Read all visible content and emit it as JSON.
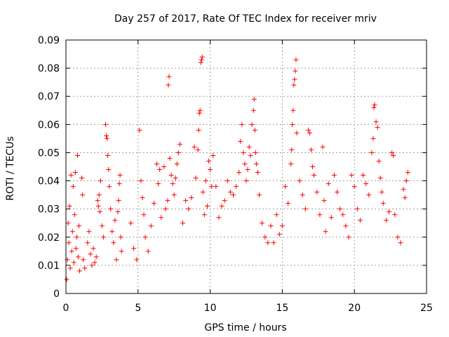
{
  "chart_data": {
    "type": "scatter",
    "title": "Day 257 of 2017, Rate Of TEC Index for receiver mriv",
    "xlabel": "GPS time / hours",
    "ylabel": "ROTI / TECUs",
    "xlim": [
      0,
      25
    ],
    "ylim": [
      0,
      0.09
    ],
    "xticks": [
      0,
      5,
      10,
      15,
      20,
      25
    ],
    "yticks": [
      0,
      0.01,
      0.02,
      0.03,
      0.04,
      0.05,
      0.06,
      0.07,
      0.08,
      0.09
    ],
    "ytick_labels": [
      "0",
      "0.01",
      "0.02",
      "0.03",
      "0.04",
      "0.05",
      "0.06",
      "0.07",
      "0.08",
      "0.09"
    ],
    "xtick_labels": [
      "0",
      "5",
      "10",
      "15",
      "20",
      "25"
    ],
    "grid": true,
    "marker": "+",
    "color": "#ff0000",
    "series": [
      {
        "name": "ROTI",
        "points": [
          [
            0.05,
            0.005
          ],
          [
            0.1,
            0.012
          ],
          [
            0.15,
            0.025
          ],
          [
            0.2,
            0.018
          ],
          [
            0.25,
            0.031
          ],
          [
            0.3,
            0.009
          ],
          [
            0.35,
            0.042
          ],
          [
            0.4,
            0.015
          ],
          [
            0.45,
            0.022
          ],
          [
            0.5,
            0.038
          ],
          [
            0.55,
            0.011
          ],
          [
            0.6,
            0.028
          ],
          [
            0.65,
            0.043
          ],
          [
            0.7,
            0.016
          ],
          [
            0.75,
            0.02
          ],
          [
            0.8,
            0.049
          ],
          [
            0.85,
            0.013
          ],
          [
            0.9,
            0.024
          ],
          [
            0.95,
            0.008
          ],
          [
            1.1,
            0.041
          ],
          [
            1.15,
            0.035
          ],
          [
            1.2,
            0.012
          ],
          [
            1.3,
            0.009
          ],
          [
            1.5,
            0.018
          ],
          [
            1.6,
            0.022
          ],
          [
            1.7,
            0.014
          ],
          [
            1.8,
            0.01
          ],
          [
            1.9,
            0.016
          ],
          [
            2.0,
            0.011
          ],
          [
            2.1,
            0.013
          ],
          [
            2.2,
            0.033
          ],
          [
            2.25,
            0.031
          ],
          [
            2.3,
            0.035
          ],
          [
            2.35,
            0.029
          ],
          [
            2.4,
            0.04
          ],
          [
            2.5,
            0.024
          ],
          [
            2.6,
            0.02
          ],
          [
            2.75,
            0.06
          ],
          [
            2.8,
            0.056
          ],
          [
            2.85,
            0.055
          ],
          [
            2.9,
            0.049
          ],
          [
            2.95,
            0.044
          ],
          [
            3.0,
            0.038
          ],
          [
            3.1,
            0.03
          ],
          [
            3.2,
            0.022
          ],
          [
            3.3,
            0.018
          ],
          [
            3.4,
            0.026
          ],
          [
            3.5,
            0.012
          ],
          [
            3.6,
            0.029
          ],
          [
            3.65,
            0.033
          ],
          [
            3.7,
            0.039
          ],
          [
            3.75,
            0.042
          ],
          [
            3.8,
            0.02
          ],
          [
            3.85,
            0.015
          ],
          [
            4.5,
            0.025
          ],
          [
            4.7,
            0.016
          ],
          [
            4.9,
            0.012
          ],
          [
            5.1,
            0.058
          ],
          [
            5.2,
            0.04
          ],
          [
            5.3,
            0.034
          ],
          [
            5.4,
            0.028
          ],
          [
            5.5,
            0.02
          ],
          [
            5.7,
            0.015
          ],
          [
            5.9,
            0.024
          ],
          [
            6.1,
            0.032
          ],
          [
            6.3,
            0.046
          ],
          [
            6.4,
            0.039
          ],
          [
            6.5,
            0.044
          ],
          [
            6.6,
            0.027
          ],
          [
            6.8,
            0.045
          ],
          [
            6.9,
            0.03
          ],
          [
            7.05,
            0.033
          ],
          [
            7.1,
            0.074
          ],
          [
            7.15,
            0.077
          ],
          [
            7.2,
            0.048
          ],
          [
            7.3,
            0.042
          ],
          [
            7.4,
            0.039
          ],
          [
            7.5,
            0.035
          ],
          [
            7.6,
            0.041
          ],
          [
            7.7,
            0.046
          ],
          [
            7.8,
            0.05
          ],
          [
            7.9,
            0.053
          ],
          [
            8.1,
            0.025
          ],
          [
            8.3,
            0.033
          ],
          [
            8.5,
            0.03
          ],
          [
            8.7,
            0.034
          ],
          [
            8.9,
            0.052
          ],
          [
            9.0,
            0.041
          ],
          [
            9.15,
            0.051
          ],
          [
            9.2,
            0.058
          ],
          [
            9.25,
            0.064
          ],
          [
            9.3,
            0.065
          ],
          [
            9.35,
            0.082
          ],
          [
            9.4,
            0.083
          ],
          [
            9.45,
            0.084
          ],
          [
            9.5,
            0.036
          ],
          [
            9.6,
            0.028
          ],
          [
            9.7,
            0.04
          ],
          [
            9.8,
            0.031
          ],
          [
            9.9,
            0.047
          ],
          [
            10.0,
            0.044
          ],
          [
            10.1,
            0.038
          ],
          [
            10.2,
            0.049
          ],
          [
            10.4,
            0.038
          ],
          [
            10.6,
            0.027
          ],
          [
            10.8,
            0.031
          ],
          [
            11.0,
            0.033
          ],
          [
            11.2,
            0.04
          ],
          [
            11.4,
            0.036
          ],
          [
            11.6,
            0.035
          ],
          [
            11.8,
            0.038
          ],
          [
            12.0,
            0.043
          ],
          [
            12.1,
            0.054
          ],
          [
            12.2,
            0.06
          ],
          [
            12.3,
            0.05
          ],
          [
            12.4,
            0.046
          ],
          [
            12.5,
            0.04
          ],
          [
            12.6,
            0.044
          ],
          [
            12.7,
            0.052
          ],
          [
            12.8,
            0.049
          ],
          [
            12.9,
            0.06
          ],
          [
            13.0,
            0.065
          ],
          [
            13.05,
            0.069
          ],
          [
            13.1,
            0.058
          ],
          [
            13.15,
            0.05
          ],
          [
            13.2,
            0.046
          ],
          [
            13.3,
            0.043
          ],
          [
            13.4,
            0.035
          ],
          [
            13.6,
            0.025
          ],
          [
            13.8,
            0.02
          ],
          [
            14.0,
            0.018
          ],
          [
            14.2,
            0.024
          ],
          [
            14.4,
            0.018
          ],
          [
            14.6,
            0.028
          ],
          [
            14.8,
            0.021
          ],
          [
            15.0,
            0.024
          ],
          [
            15.2,
            0.038
          ],
          [
            15.4,
            0.032
          ],
          [
            15.6,
            0.046
          ],
          [
            15.65,
            0.051
          ],
          [
            15.7,
            0.06
          ],
          [
            15.75,
            0.065
          ],
          [
            15.8,
            0.074
          ],
          [
            15.85,
            0.076
          ],
          [
            15.9,
            0.079
          ],
          [
            15.95,
            0.083
          ],
          [
            16.0,
            0.057
          ],
          [
            16.2,
            0.04
          ],
          [
            16.4,
            0.035
          ],
          [
            16.6,
            0.03
          ],
          [
            16.8,
            0.058
          ],
          [
            16.9,
            0.057
          ],
          [
            17.0,
            0.051
          ],
          [
            17.1,
            0.045
          ],
          [
            17.2,
            0.042
          ],
          [
            17.4,
            0.036
          ],
          [
            17.6,
            0.028
          ],
          [
            17.8,
            0.052
          ],
          [
            17.9,
            0.033
          ],
          [
            18.0,
            0.022
          ],
          [
            18.2,
            0.039
          ],
          [
            18.4,
            0.027
          ],
          [
            18.6,
            0.042
          ],
          [
            18.8,
            0.036
          ],
          [
            19.0,
            0.03
          ],
          [
            19.2,
            0.028
          ],
          [
            19.4,
            0.024
          ],
          [
            19.6,
            0.02
          ],
          [
            19.8,
            0.042
          ],
          [
            20.0,
            0.038
          ],
          [
            20.2,
            0.03
          ],
          [
            20.4,
            0.026
          ],
          [
            20.6,
            0.042
          ],
          [
            20.8,
            0.039
          ],
          [
            21.0,
            0.035
          ],
          [
            21.2,
            0.05
          ],
          [
            21.3,
            0.055
          ],
          [
            21.35,
            0.066
          ],
          [
            21.4,
            0.067
          ],
          [
            21.5,
            0.061
          ],
          [
            21.6,
            0.059
          ],
          [
            21.7,
            0.047
          ],
          [
            21.8,
            0.041
          ],
          [
            21.9,
            0.036
          ],
          [
            22.0,
            0.032
          ],
          [
            22.2,
            0.026
          ],
          [
            22.4,
            0.029
          ],
          [
            22.6,
            0.05
          ],
          [
            22.7,
            0.049
          ],
          [
            22.8,
            0.028
          ],
          [
            23.0,
            0.02
          ],
          [
            23.2,
            0.018
          ],
          [
            23.4,
            0.037
          ],
          [
            23.5,
            0.034
          ],
          [
            23.6,
            0.04
          ],
          [
            23.7,
            0.043
          ]
        ]
      }
    ]
  }
}
